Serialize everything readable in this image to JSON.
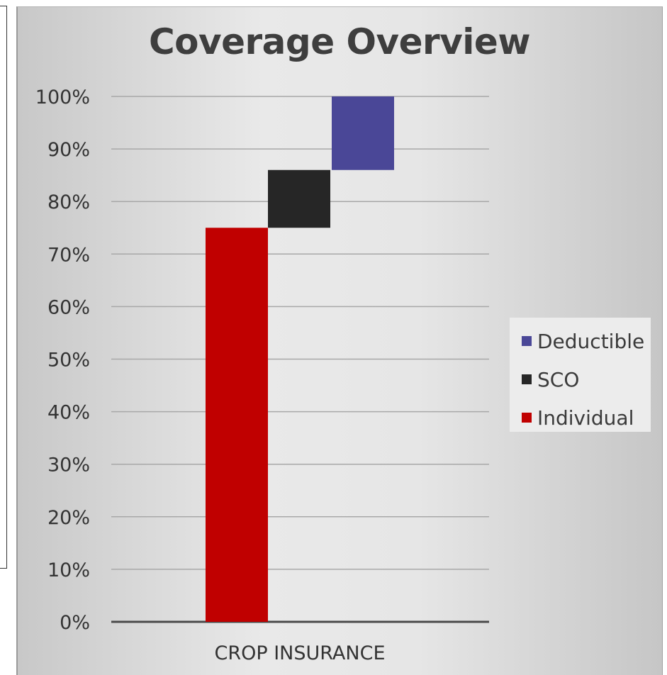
{
  "chart_data": {
    "type": "bar",
    "subtype": "stacked-waterfall",
    "title": "Coverage Overview",
    "categories": [
      "CROP INSURANCE"
    ],
    "ylim": [
      0,
      100
    ],
    "yticks": [
      "0%",
      "10%",
      "20%",
      "30%",
      "40%",
      "50%",
      "60%",
      "70%",
      "80%",
      "90%",
      "100%"
    ],
    "ytick_values": [
      0,
      10,
      20,
      30,
      40,
      50,
      60,
      70,
      80,
      90,
      100
    ],
    "grid": true,
    "legend_position": "right",
    "series": [
      {
        "name": "Individual",
        "start": 0,
        "end": 75,
        "color": "#c00000"
      },
      {
        "name": "SCO",
        "start": 75,
        "end": 86,
        "color": "#262626"
      },
      {
        "name": "Deductible",
        "start": 86,
        "end": 100,
        "color": "#4a4797"
      }
    ],
    "legend_order": [
      "Deductible",
      "SCO",
      "Individual"
    ]
  }
}
